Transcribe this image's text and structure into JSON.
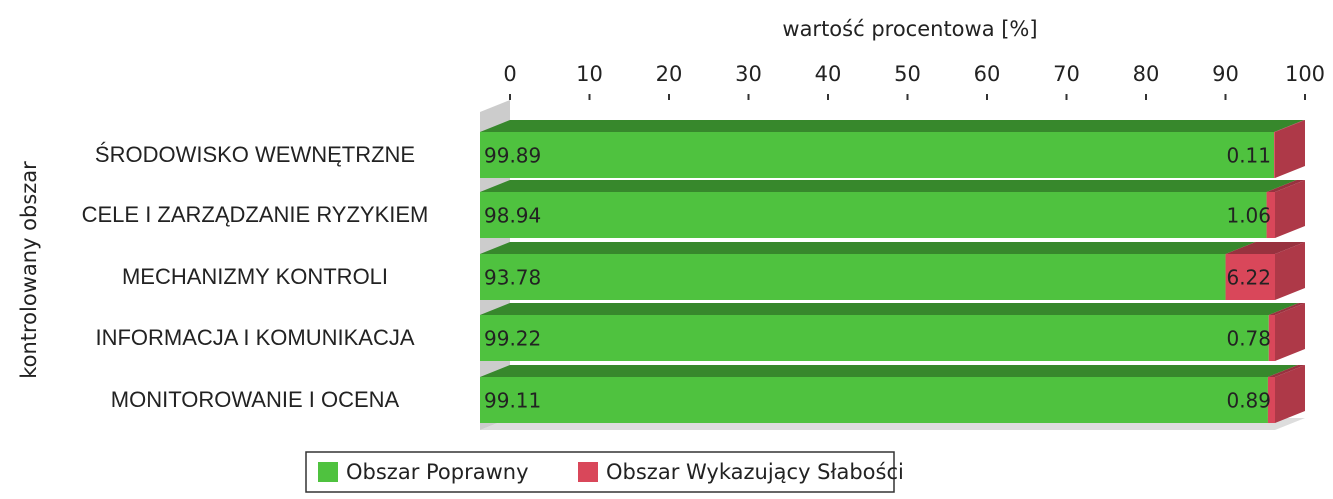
{
  "chart_data": {
    "type": "stacked-bar-horizontal",
    "x_label": "wartość procentowa [%]",
    "y_label": "kontrolowany obszar",
    "categories": [
      "ŚRODOWISKO WEWNĘTRZNE",
      "CELE I ZARZĄDZANIE RYZYKIEM",
      "MECHANIZMY KONTROLI",
      "INFORMACJA I KOMUNIKACJA",
      "MONITOROWANIE I OCENA"
    ],
    "series": [
      {
        "name": "Obszar Poprawny",
        "color": "#4fc23f",
        "values": [
          99.89,
          98.94,
          93.78,
          99.22,
          99.11
        ]
      },
      {
        "name": "Obszar Wykazujący Słabości",
        "color": "#d9475a",
        "values": [
          0.11,
          1.06,
          6.22,
          0.78,
          0.89
        ]
      }
    ],
    "xlim": [
      0,
      100
    ],
    "xticks": [
      0,
      10,
      20,
      30,
      40,
      50,
      60,
      70,
      80,
      90,
      100
    ],
    "legend": "bottom"
  }
}
